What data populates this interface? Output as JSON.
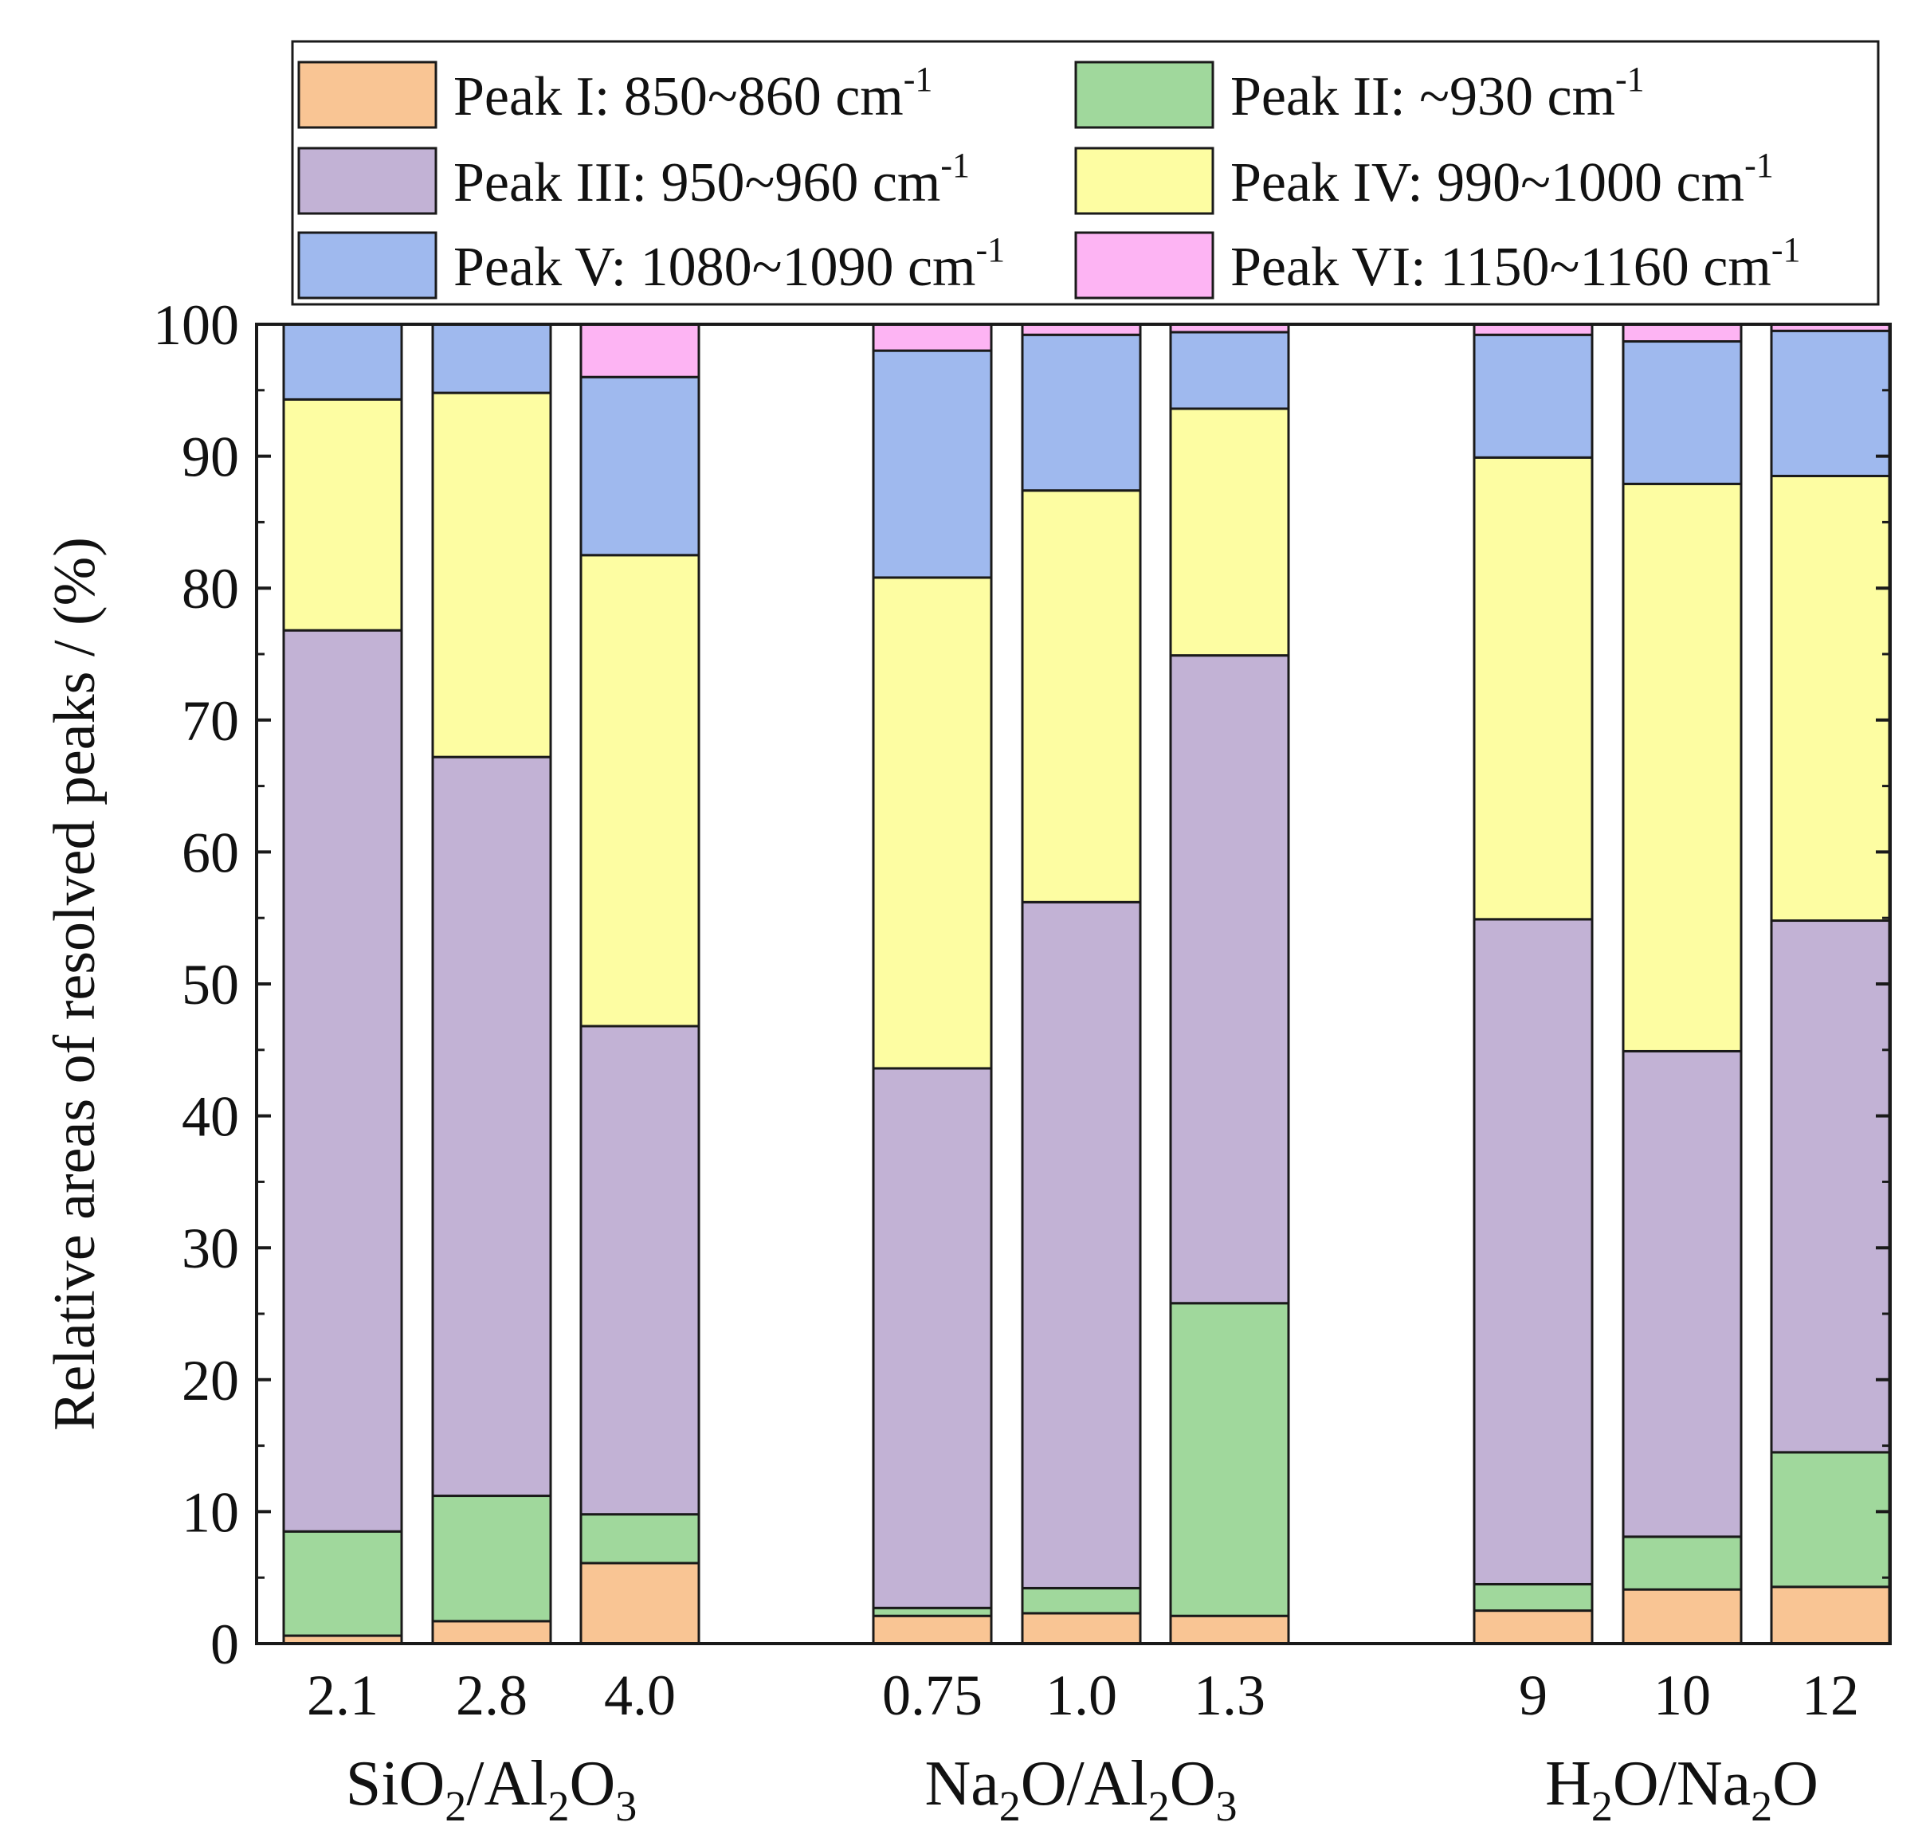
{
  "chart_data": {
    "type": "bar",
    "stacked": true,
    "ylabel": "Relative areas of resolved peaks / (%)",
    "ylim": [
      0,
      100
    ],
    "yticks": [
      "0",
      "10",
      "20",
      "30",
      "40",
      "50",
      "60",
      "70",
      "80",
      "90",
      "100"
    ],
    "legend_position": "top",
    "categories": [
      "2.1",
      "2.8",
      "4.0",
      "0.75",
      "1.0",
      "1.3",
      "9",
      "10",
      "12"
    ],
    "groups": [
      {
        "base": "SiO",
        "sub1": "2",
        "mid": "/Al",
        "sub2": "2",
        "end": "O",
        "sub3": "3",
        "indices": [
          0,
          1,
          2
        ]
      },
      {
        "base": "Na",
        "sub1": "2",
        "mid": "O/Al",
        "sub2": "2",
        "end": "O",
        "sub3": "3",
        "indices": [
          3,
          4,
          5
        ]
      },
      {
        "base": "H",
        "sub1": "2",
        "mid": "O/Na",
        "sub2": "2",
        "end": "O",
        "sub3": "",
        "indices": [
          6,
          7,
          8
        ]
      }
    ],
    "series": [
      {
        "name": "Peak I: 850~860 cm",
        "sup": "-1",
        "color": "#F9C594",
        "values": [
          0.6,
          1.7,
          6.1,
          2.1,
          2.3,
          2.1,
          2.5,
          4.1,
          4.3
        ]
      },
      {
        "name": "Peak II: ~930 cm",
        "sup": "-1",
        "color": "#A0D89C",
        "values": [
          7.9,
          9.5,
          3.7,
          0.6,
          1.9,
          23.7,
          2.0,
          4.0,
          10.2
        ]
      },
      {
        "name": "Peak III: 950~960 cm",
        "sup": "-1",
        "color": "#C2B2D5",
        "values": [
          68.3,
          56.0,
          37.0,
          40.9,
          52.0,
          49.1,
          50.4,
          36.8,
          40.3
        ]
      },
      {
        "name": "Peak IV: 990~1000 cm",
        "sup": "-1",
        "color": "#FDFDA2",
        "values": [
          17.5,
          27.6,
          35.7,
          37.2,
          31.2,
          18.7,
          35.0,
          43.0,
          33.7
        ]
      },
      {
        "name": "Peak V: 1080~1090 cm",
        "sup": "-1",
        "color": "#9FB9EE",
        "values": [
          5.7,
          5.2,
          13.5,
          17.2,
          11.8,
          5.8,
          9.3,
          10.8,
          11.0
        ]
      },
      {
        "name": "Peak VI: 1150~1160 cm",
        "sup": "-1",
        "color": "#FDB4F3",
        "values": [
          0.0,
          0.0,
          4.0,
          2.0,
          0.8,
          0.6,
          0.8,
          1.3,
          0.5
        ]
      }
    ]
  }
}
